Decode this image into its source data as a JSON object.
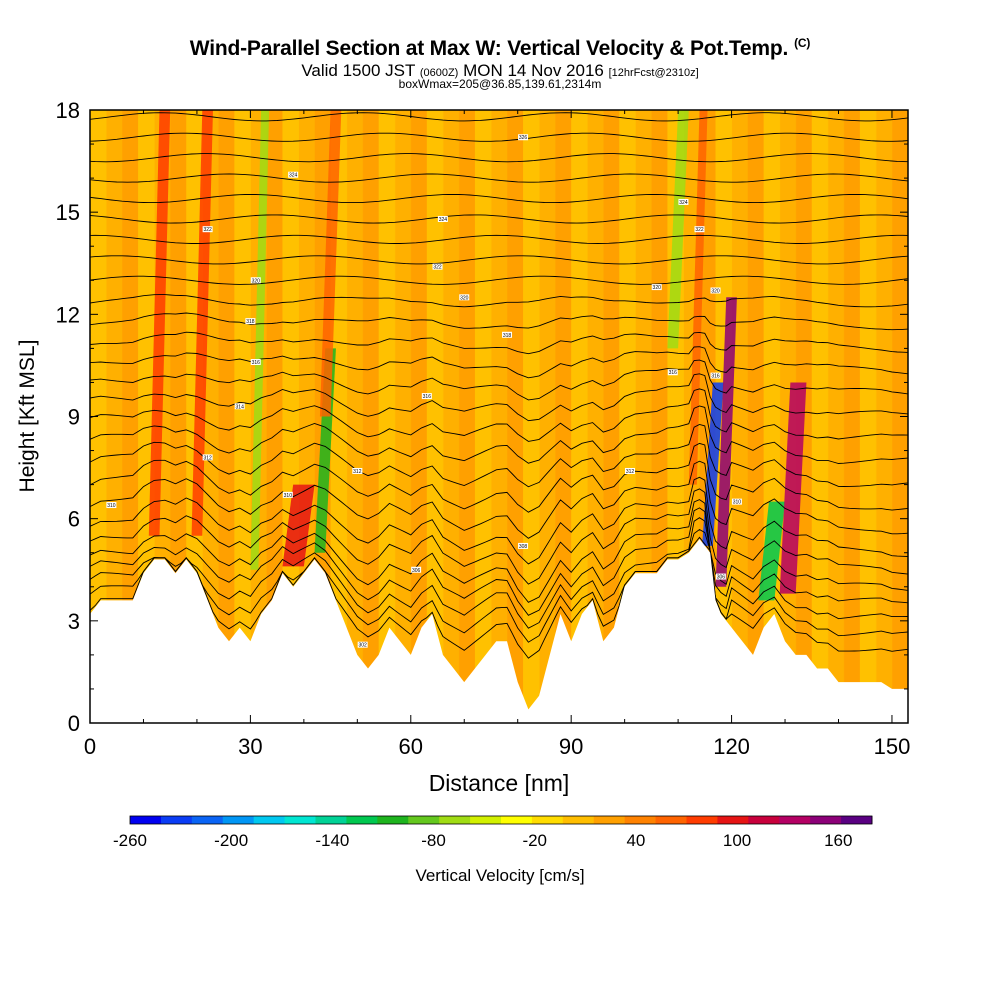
{
  "header": {
    "title": "Wind-Parallel Section at Max W: Vertical Velocity & Pot.Temp.",
    "copyright": "(C)",
    "subtitle_pre": "Valid 1500 JST",
    "subtitle_utc": "(0600Z)",
    "subtitle_mid": "MON 14 Nov 2016",
    "subtitle_fcst": "[12hrFcst@2310z]",
    "subtitle2": "boxWmax=205@36.85,139.61,2314m"
  },
  "chart_data": {
    "type": "heatmap",
    "title": "Wind-Parallel Section at Max W: Vertical Velocity & Pot.Temp.",
    "xlabel": "Distance [nm]",
    "ylabel": "Height [Kft MSL]",
    "xlim": [
      0,
      153
    ],
    "ylim": [
      0,
      18
    ],
    "x_ticks": [
      0,
      30,
      60,
      90,
      120,
      150
    ],
    "y_ticks": [
      0,
      3,
      6,
      9,
      12,
      15,
      18
    ],
    "colorbar": {
      "label": "Vertical Velocity [cm/s]",
      "tick_labels": [
        "-260",
        "-200",
        "-140",
        "-80",
        "-20",
        "40",
        "100",
        "160"
      ],
      "range": [
        -260,
        180
      ],
      "colors": [
        "#0000f0",
        "#0a3cf5",
        "#0a64f5",
        "#0096f5",
        "#00c8f0",
        "#00e6d2",
        "#00d296",
        "#00c850",
        "#1eb41e",
        "#64c81e",
        "#a0dc14",
        "#d2f000",
        "#ffff00",
        "#ffdc00",
        "#ffbe00",
        "#ffa000",
        "#ff8200",
        "#ff6400",
        "#ff3c00",
        "#e61414",
        "#c8003c",
        "#b40064",
        "#8c0078",
        "#5a0082"
      ]
    },
    "background_level": 15,
    "terrain_height_kft": [
      [
        0,
        3.2
      ],
      [
        2,
        3.6
      ],
      [
        4,
        3.6
      ],
      [
        6,
        3.6
      ],
      [
        8,
        3.6
      ],
      [
        10,
        4.4
      ],
      [
        12,
        4.8
      ],
      [
        14,
        4.8
      ],
      [
        16,
        4.4
      ],
      [
        18,
        4.8
      ],
      [
        20,
        4.4
      ],
      [
        22,
        3.6
      ],
      [
        24,
        2.8
      ],
      [
        26,
        2.4
      ],
      [
        28,
        2.8
      ],
      [
        30,
        2.4
      ],
      [
        32,
        3.2
      ],
      [
        34,
        3.6
      ],
      [
        36,
        4.4
      ],
      [
        38,
        4.0
      ],
      [
        40,
        4.4
      ],
      [
        42,
        4.8
      ],
      [
        44,
        4.4
      ],
      [
        46,
        3.6
      ],
      [
        48,
        2.8
      ],
      [
        50,
        2.0
      ],
      [
        52,
        1.6
      ],
      [
        54,
        2.0
      ],
      [
        56,
        2.8
      ],
      [
        58,
        2.4
      ],
      [
        60,
        2.0
      ],
      [
        62,
        2.8
      ],
      [
        64,
        3.2
      ],
      [
        66,
        2.0
      ],
      [
        68,
        1.6
      ],
      [
        70,
        1.2
      ],
      [
        72,
        1.6
      ],
      [
        74,
        2.0
      ],
      [
        76,
        2.4
      ],
      [
        78,
        2.4
      ],
      [
        80,
        1.2
      ],
      [
        82,
        0.4
      ],
      [
        84,
        0.8
      ],
      [
        86,
        2.0
      ],
      [
        88,
        3.2
      ],
      [
        90,
        2.4
      ],
      [
        92,
        3.2
      ],
      [
        94,
        3.6
      ],
      [
        96,
        2.4
      ],
      [
        98,
        2.8
      ],
      [
        100,
        4.0
      ],
      [
        102,
        4.4
      ],
      [
        104,
        4.4
      ],
      [
        106,
        4.4
      ],
      [
        108,
        4.8
      ],
      [
        110,
        4.8
      ],
      [
        112,
        5.0
      ],
      [
        114,
        5.4
      ],
      [
        116,
        5.0
      ],
      [
        117,
        3.6
      ],
      [
        118,
        3.2
      ],
      [
        120,
        2.8
      ],
      [
        122,
        2.4
      ],
      [
        124,
        2.0
      ],
      [
        126,
        2.8
      ],
      [
        128,
        3.2
      ],
      [
        130,
        2.4
      ],
      [
        132,
        2.0
      ],
      [
        134,
        2.0
      ],
      [
        136,
        1.6
      ],
      [
        138,
        1.6
      ],
      [
        140,
        1.2
      ],
      [
        142,
        1.2
      ],
      [
        144,
        1.2
      ],
      [
        146,
        1.2
      ],
      [
        148,
        1.2
      ],
      [
        150,
        1.0
      ],
      [
        153,
        1.0
      ]
    ],
    "velocity_bands": [
      {
        "x0": 11,
        "x1": 13,
        "z0": 5.5,
        "z1": 18,
        "level": 18
      },
      {
        "x0": 19,
        "x1": 21,
        "z0": 5.5,
        "z1": 18,
        "level": 18
      },
      {
        "x0": 30,
        "x1": 31.5,
        "z0": 4.5,
        "z1": 18,
        "level": 10
      },
      {
        "x0": 42,
        "x1": 44,
        "z0": 5.0,
        "z1": 11,
        "level": 8
      },
      {
        "x0": 36,
        "x1": 40,
        "z0": 4.6,
        "z1": 7,
        "level": 19
      },
      {
        "x0": 43,
        "x1": 45,
        "z0": 9,
        "z1": 18,
        "level": 17
      },
      {
        "x0": 108,
        "x1": 110,
        "z0": 11,
        "z1": 18,
        "level": 10
      },
      {
        "x0": 112,
        "x1": 113.5,
        "z0": 7,
        "z1": 18,
        "level": 17
      },
      {
        "x0": 114.5,
        "x1": 116.5,
        "z0": 5.2,
        "z1": 10,
        "level": 1
      },
      {
        "x0": 117,
        "x1": 119,
        "z0": 4.0,
        "z1": 12.5,
        "level": 22
      },
      {
        "x0": 125,
        "x1": 128,
        "z0": 3.6,
        "z1": 6.5,
        "level": 7
      },
      {
        "x0": 129,
        "x1": 132,
        "z0": 3.8,
        "z1": 10,
        "level": 21
      }
    ],
    "theta_contour_base_kft": [
      3.2,
      3.6,
      4.0,
      4.4,
      4.8,
      5.3,
      5.8,
      6.4,
      7.0,
      7.6,
      8.2,
      8.8,
      9.4,
      10.0,
      10.6,
      11.2,
      11.8,
      12.4,
      13.0,
      13.6,
      14.2,
      14.8,
      15.4,
      16.0,
      16.6,
      17.2,
      17.8
    ],
    "theta_contour_labels": [
      {
        "x": 4,
        "z": 6.4,
        "text": "310"
      },
      {
        "x": 22,
        "z": 7.8,
        "text": "312"
      },
      {
        "x": 28,
        "z": 9.3,
        "text": "314"
      },
      {
        "x": 31,
        "z": 10.6,
        "text": "316"
      },
      {
        "x": 30,
        "z": 11.8,
        "text": "318"
      },
      {
        "x": 31,
        "z": 13.0,
        "text": "320"
      },
      {
        "x": 22,
        "z": 14.5,
        "text": "322"
      },
      {
        "x": 38,
        "z": 16.1,
        "text": "324"
      },
      {
        "x": 37,
        "z": 6.7,
        "text": "310"
      },
      {
        "x": 50,
        "z": 7.4,
        "text": "312"
      },
      {
        "x": 51,
        "z": 2.3,
        "text": "302"
      },
      {
        "x": 61,
        "z": 4.5,
        "text": "306"
      },
      {
        "x": 63,
        "z": 9.6,
        "text": "316"
      },
      {
        "x": 65,
        "z": 13.4,
        "text": "322"
      },
      {
        "x": 66,
        "z": 14.8,
        "text": "324"
      },
      {
        "x": 70,
        "z": 12.5,
        "text": "320"
      },
      {
        "x": 78,
        "z": 11.4,
        "text": "318"
      },
      {
        "x": 81,
        "z": 5.2,
        "text": "308"
      },
      {
        "x": 81,
        "z": 17.2,
        "text": "326"
      },
      {
        "x": 101,
        "z": 7.4,
        "text": "312"
      },
      {
        "x": 106,
        "z": 12.8,
        "text": "320"
      },
      {
        "x": 109,
        "z": 10.3,
        "text": "316"
      },
      {
        "x": 111,
        "z": 15.3,
        "text": "324"
      },
      {
        "x": 114,
        "z": 14.5,
        "text": "322"
      },
      {
        "x": 117,
        "z": 12.7,
        "text": "320"
      },
      {
        "x": 117,
        "z": 10.2,
        "text": "316"
      },
      {
        "x": 118,
        "z": 4.3,
        "text": "306"
      },
      {
        "x": 121,
        "z": 6.5,
        "text": "310"
      }
    ]
  }
}
